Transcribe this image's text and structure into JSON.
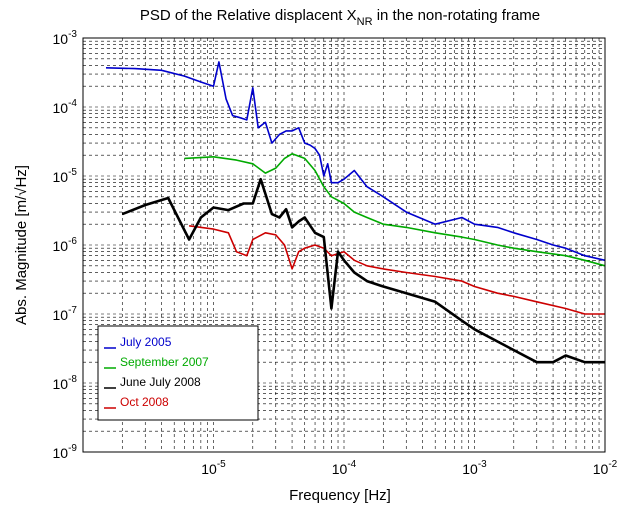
{
  "chart_data": {
    "type": "line",
    "title": "PSD of the Relative displacent X",
    "title_subscript": "NR",
    "title_suffix": " in the non-rotating frame",
    "xlabel": "Frequency [Hz]",
    "ylabel": "Abs. Magnitude [m/√Hz]",
    "xscale": "log",
    "yscale": "log",
    "xlim": [
      1e-06,
      0.01
    ],
    "ylim": [
      1e-09,
      0.001
    ],
    "x_ticks": [
      {
        "base": "10",
        "exp": "-5",
        "value": 1e-05
      },
      {
        "base": "10",
        "exp": "-4",
        "value": 0.0001
      },
      {
        "base": "10",
        "exp": "-3",
        "value": 0.001
      },
      {
        "base": "10",
        "exp": "-2",
        "value": 0.01
      }
    ],
    "y_ticks": [
      {
        "base": "10",
        "exp": "-9",
        "value": 1e-09
      },
      {
        "base": "10",
        "exp": "-8",
        "value": 1e-08
      },
      {
        "base": "10",
        "exp": "-7",
        "value": 1e-07
      },
      {
        "base": "10",
        "exp": "-6",
        "value": 1e-06
      },
      {
        "base": "10",
        "exp": "-5",
        "value": 1e-05
      },
      {
        "base": "10",
        "exp": "-4",
        "value": 0.0001
      },
      {
        "base": "10",
        "exp": "-3",
        "value": 0.001
      }
    ],
    "grid": true,
    "legend_position": "bottom-left",
    "series": [
      {
        "name": "July 2005",
        "color": "#0000cc",
        "x": [
          1.5e-06,
          2.5e-06,
          4e-06,
          6e-06,
          8e-06,
          1e-05,
          1.1e-05,
          1.25e-05,
          1.4e-05,
          1.6e-05,
          1.8e-05,
          2e-05,
          2.2e-05,
          2.5e-05,
          2.8e-05,
          3.2e-05,
          3.6e-05,
          4e-05,
          4.5e-05,
          5e-05,
          5.5e-05,
          6e-05,
          6.5e-05,
          7e-05,
          7.5e-05,
          8e-05,
          9e-05,
          0.0001,
          0.00012,
          0.00015,
          0.0002,
          0.0003,
          0.0005,
          0.0008,
          0.001,
          0.0015,
          0.002,
          0.003,
          0.004,
          0.005,
          0.007,
          0.01
        ],
        "y": [
          0.00037,
          0.00036,
          0.00034,
          0.00028,
          0.00023,
          0.0002,
          0.00045,
          0.00013,
          7.5e-05,
          7e-05,
          6.5e-05,
          0.00019,
          5e-05,
          6e-05,
          3e-05,
          4e-05,
          4.5e-05,
          4.5e-05,
          5e-05,
          3e-05,
          2.8e-05,
          2.5e-05,
          2e-05,
          1e-05,
          1.5e-05,
          8e-06,
          8e-06,
          9e-06,
          1.2e-05,
          7e-06,
          5e-06,
          3e-06,
          2e-06,
          2.5e-06,
          2e-06,
          1.8e-06,
          1.5e-06,
          1.2e-06,
          1e-06,
          9e-07,
          7e-07,
          6e-07
        ]
      },
      {
        "name": "September 2007",
        "color": "#00aa00",
        "x": [
          6e-06,
          1e-05,
          1.5e-05,
          2e-05,
          2.5e-05,
          3e-05,
          3.5e-05,
          4e-05,
          5e-05,
          6e-05,
          7e-05,
          8e-05,
          0.0001,
          0.00012,
          0.00015,
          0.0002,
          0.0003,
          0.0005,
          0.0008,
          0.001,
          0.0015,
          0.002,
          0.003,
          0.005,
          0.007,
          0.01
        ],
        "y": [
          1.8e-05,
          1.9e-05,
          1.7e-05,
          1.5e-05,
          1.1e-05,
          1.3e-05,
          1.8e-05,
          2.1e-05,
          1.8e-05,
          1.2e-05,
          7e-06,
          5e-06,
          4e-06,
          3e-06,
          2.5e-06,
          2e-06,
          1.8e-06,
          1.5e-06,
          1.3e-06,
          1.2e-06,
          1e-06,
          9e-07,
          8e-07,
          7e-07,
          6e-07,
          5e-07
        ]
      },
      {
        "name": "June July 2008",
        "color": "#000000",
        "x": [
          2e-06,
          3e-06,
          4.5e-06,
          6.5e-06,
          8e-06,
          1e-05,
          1.3e-05,
          1.7e-05,
          2e-05,
          2.3e-05,
          2.5e-05,
          2.8e-05,
          3.2e-05,
          3.6e-05,
          4e-05,
          4.5e-05,
          5e-05,
          6e-05,
          7e-05,
          8e-05,
          9e-05,
          0.0001,
          0.00012,
          0.00015,
          0.0002,
          0.0003,
          0.0005,
          0.0008,
          0.001,
          0.0015,
          0.002,
          0.003,
          0.004,
          0.005,
          0.007,
          0.01
        ],
        "y": [
          2.8e-06,
          3.8e-06,
          4.8e-06,
          1.2e-06,
          2.5e-06,
          3.5e-06,
          3.2e-06,
          4e-06,
          4e-06,
          9e-06,
          5.5e-06,
          2.8e-06,
          2.5e-06,
          3.3e-06,
          1.8e-06,
          2.2e-06,
          2.5e-06,
          1.5e-06,
          1.3e-06,
          1.2e-07,
          8e-07,
          6e-07,
          4e-07,
          3e-07,
          2.5e-07,
          2e-07,
          1.5e-07,
          8e-08,
          6e-08,
          4e-08,
          3e-08,
          2e-08,
          2e-08,
          2.5e-08,
          2e-08,
          2e-08
        ]
      },
      {
        "name": "Oct 2008",
        "color": "#cc0000",
        "x": [
          6.5e-06,
          1e-05,
          1.3e-05,
          1.5e-05,
          1.8e-05,
          2e-05,
          2.5e-05,
          3e-05,
          3.5e-05,
          4e-05,
          4.5e-05,
          5e-05,
          6e-05,
          7e-05,
          8e-05,
          0.0001,
          0.00012,
          0.00015,
          0.0002,
          0.0003,
          0.0005,
          0.0008,
          0.001,
          0.0015,
          0.002,
          0.003,
          0.005,
          0.007,
          0.01
        ],
        "y": [
          1.9e-06,
          1.7e-06,
          1.5e-06,
          8e-07,
          7e-07,
          1.2e-06,
          1.5e-06,
          1.4e-06,
          1e-06,
          4.5e-07,
          8e-07,
          9e-07,
          1e-06,
          9e-07,
          7e-07,
          8e-07,
          6e-07,
          5e-07,
          4.5e-07,
          4e-07,
          3.5e-07,
          3e-07,
          2.5e-07,
          2e-07,
          1.8e-07,
          1.5e-07,
          1.2e-07,
          1e-07,
          1e-07
        ]
      }
    ]
  }
}
